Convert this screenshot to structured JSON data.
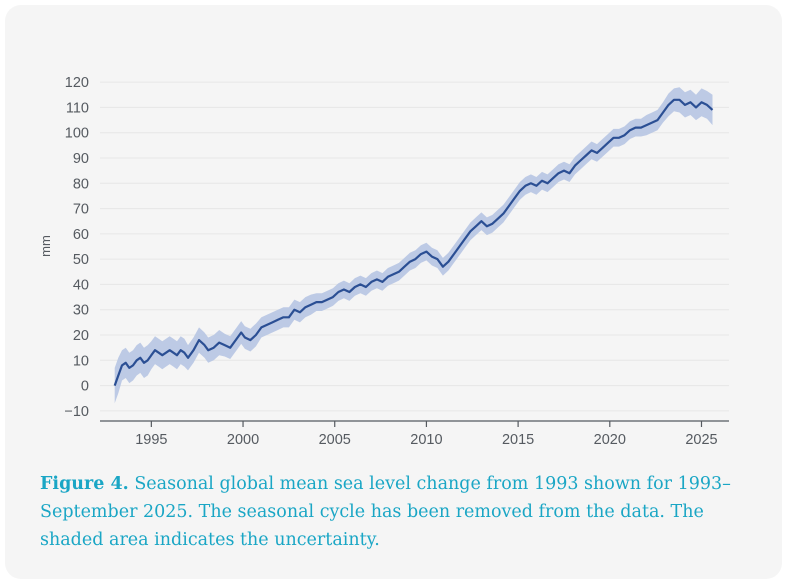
{
  "chart_data": {
    "type": "area",
    "title": "",
    "xlabel": "",
    "ylabel": "mm",
    "xlim": [
      1992.2,
      2026.5
    ],
    "ylim": [
      -14,
      124
    ],
    "x_ticks": [
      1995,
      2000,
      2005,
      2010,
      2015,
      2020,
      2025
    ],
    "y_ticks": [
      -10,
      0,
      10,
      20,
      30,
      40,
      50,
      60,
      70,
      80,
      90,
      100,
      110,
      120
    ],
    "x_tick_labels": [
      "1995",
      "2000",
      "2005",
      "2010",
      "2015",
      "2020",
      "2025"
    ],
    "y_tick_labels": [
      "−10",
      "0",
      "10",
      "20",
      "30",
      "40",
      "50",
      "60",
      "70",
      "80",
      "90",
      "100",
      "110",
      "120"
    ],
    "grid": "horizontal",
    "colors": {
      "line": "#2b4f94",
      "band": "#b7c5e3",
      "grid": "#e6e6e6",
      "axis": "#555a60"
    },
    "series": [
      {
        "x": [
          1993.0,
          1993.2,
          1993.4,
          1993.6,
          1993.8,
          1994.0,
          1994.2,
          1994.4,
          1994.6,
          1994.8,
          1995.0,
          1995.2,
          1995.4,
          1995.6,
          1995.8,
          1996.0,
          1996.2,
          1996.4,
          1996.6,
          1996.8,
          1997.0,
          1997.3,
          1997.6,
          1997.9,
          1998.1,
          1998.4,
          1998.7,
          1999.0,
          1999.3,
          1999.6,
          1999.9,
          2000.1,
          2000.4,
          2000.7,
          2001.0,
          2001.3,
          2001.6,
          2001.9,
          2002.2,
          2002.5,
          2002.8,
          2003.1,
          2003.4,
          2003.7,
          2004.0,
          2004.3,
          2004.6,
          2004.9,
          2005.2,
          2005.5,
          2005.8,
          2006.1,
          2006.4,
          2006.7,
          2007.0,
          2007.3,
          2007.6,
          2007.9,
          2008.2,
          2008.5,
          2008.8,
          2009.1,
          2009.4,
          2009.7,
          2010.0,
          2010.3,
          2010.6,
          2010.9,
          2011.2,
          2011.5,
          2011.8,
          2012.1,
          2012.4,
          2012.7,
          2013.0,
          2013.3,
          2013.6,
          2013.9,
          2014.2,
          2014.5,
          2014.8,
          2015.1,
          2015.4,
          2015.7,
          2016.0,
          2016.3,
          2016.6,
          2016.9,
          2017.2,
          2017.5,
          2017.8,
          2018.1,
          2018.4,
          2018.7,
          2019.0,
          2019.3,
          2019.6,
          2019.9,
          2020.2,
          2020.5,
          2020.8,
          2021.1,
          2021.4,
          2021.7,
          2022.0,
          2022.3,
          2022.6,
          2022.9,
          2023.2,
          2023.5,
          2023.8,
          2024.1,
          2024.4,
          2024.7,
          2025.0,
          2025.3,
          2025.6
        ],
        "values": [
          0,
          4,
          8,
          9,
          7,
          8,
          10,
          11,
          9,
          10,
          12,
          14,
          13,
          12,
          13,
          14,
          13,
          12,
          14,
          13,
          11,
          14,
          18,
          16,
          14,
          15,
          17,
          16,
          15,
          18,
          21,
          19,
          18,
          20,
          23,
          24,
          25,
          26,
          27,
          27,
          30,
          29,
          31,
          32,
          33,
          33,
          34,
          35,
          37,
          38,
          37,
          39,
          40,
          39,
          41,
          42,
          41,
          43,
          44,
          45,
          47,
          49,
          50,
          52,
          53,
          51,
          50,
          47,
          49,
          52,
          55,
          58,
          61,
          63,
          65,
          63,
          64,
          66,
          68,
          71,
          74,
          77,
          79,
          80,
          79,
          81,
          80,
          82,
          84,
          85,
          84,
          87,
          89,
          91,
          93,
          92,
          94,
          96,
          98,
          98,
          99,
          101,
          102,
          102,
          103,
          104,
          105,
          108,
          111,
          113,
          113,
          111,
          112,
          110,
          112,
          111,
          109
        ],
        "uncertainty": [
          7,
          7,
          6,
          6,
          6,
          6,
          6,
          6,
          6,
          6,
          5.5,
          5.5,
          5.5,
          5.5,
          5.5,
          5.5,
          5.5,
          5.5,
          5.5,
          5.5,
          5,
          5,
          5,
          5,
          5,
          5,
          5,
          4.5,
          4.5,
          4.5,
          4.5,
          4.5,
          4.5,
          4.5,
          4,
          4,
          4,
          4,
          4,
          4,
          4,
          4,
          4,
          4,
          3.5,
          3.5,
          3.5,
          3.5,
          3.5,
          3.5,
          3.5,
          3.5,
          3.5,
          3.5,
          3.5,
          3.5,
          3.5,
          3.5,
          3.5,
          3.5,
          3.5,
          3.5,
          3.5,
          3.5,
          3.5,
          3.5,
          3.5,
          3.5,
          3.5,
          3.5,
          3.5,
          3.5,
          3.5,
          3.5,
          3.5,
          3.5,
          3.5,
          3.5,
          3.5,
          3.5,
          3.5,
          3.5,
          3.5,
          3.5,
          3.5,
          3.5,
          3.5,
          3.5,
          3.5,
          3.5,
          3.5,
          3.5,
          3.5,
          3.5,
          3.5,
          3.5,
          3.5,
          3.5,
          3.5,
          3.5,
          3.5,
          3.5,
          3.5,
          3.5,
          4,
          4,
          4,
          4,
          4.5,
          4.5,
          5,
          5,
          5,
          5,
          5.5,
          5.5,
          6
        ]
      }
    ]
  },
  "caption": {
    "figure_label": "Figure 4.",
    "text": " Seasonal global mean sea level change from 1993 shown for 1993–September 2025. The seasonal cycle has been removed from the data. The shaded area indicates the uncertainty."
  }
}
